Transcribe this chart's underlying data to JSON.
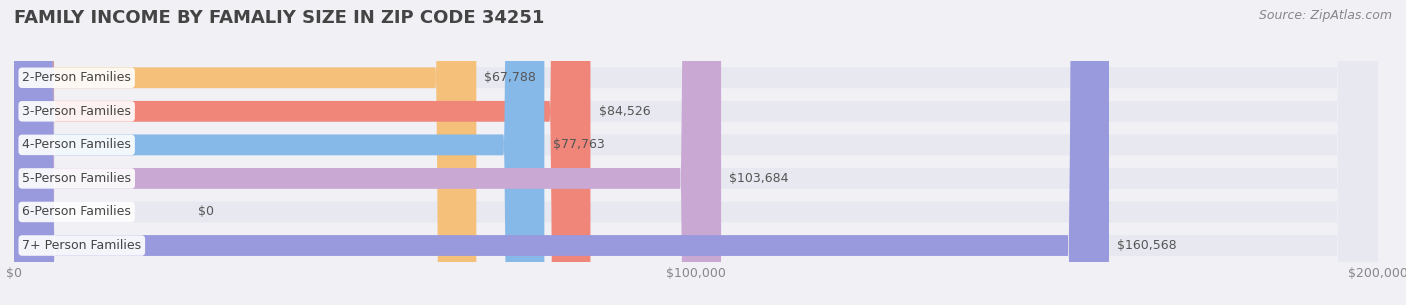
{
  "title": "FAMILY INCOME BY FAMALIY SIZE IN ZIP CODE 34251",
  "source": "Source: ZipAtlas.com",
  "categories": [
    "2-Person Families",
    "3-Person Families",
    "4-Person Families",
    "5-Person Families",
    "6-Person Families",
    "7+ Person Families"
  ],
  "values": [
    67788,
    84526,
    77763,
    103684,
    0,
    160568
  ],
  "bar_colors": [
    "#f5c07a",
    "#f0857a",
    "#86b8e8",
    "#c9a8d4",
    "#5ecfbe",
    "#9999dd"
  ],
  "value_labels": [
    "$67,788",
    "$84,526",
    "$77,763",
    "$103,684",
    "$0",
    "$160,568"
  ],
  "xlim": [
    0,
    200000
  ],
  "xticks": [
    0,
    100000,
    200000
  ],
  "xtick_labels": [
    "$0",
    "$100,000",
    "$200,000"
  ],
  "bg_color": "#f0f0f5",
  "bar_bg_color": "#e8e8f0",
  "title_fontsize": 13,
  "source_fontsize": 9,
  "label_fontsize": 9,
  "value_fontsize": 9,
  "tick_fontsize": 9
}
